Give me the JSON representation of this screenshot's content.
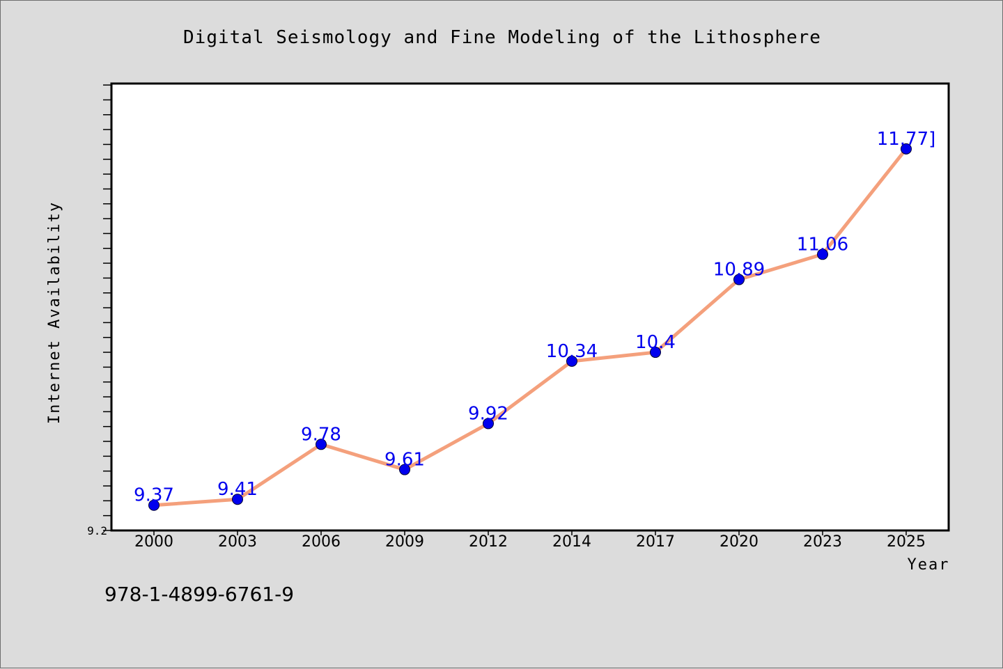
{
  "chart_data": {
    "type": "line",
    "title": "Digital Seismology and Fine Modeling of the Lithosphere",
    "xlabel": "Year",
    "ylabel": "Internet Availability",
    "categories": [
      "2000",
      "2003",
      "2006",
      "2009",
      "2012",
      "2014",
      "2017",
      "2020",
      "2023",
      "2025"
    ],
    "series": [
      {
        "values": [
          9.37,
          9.41,
          9.78,
          9.61,
          9.92,
          10.34,
          10.4,
          10.89,
          11.06,
          11.77
        ]
      }
    ],
    "data_labels": [
      "9.37",
      "9.41",
      "9.78",
      "9.61",
      "9.92",
      "10.34",
      "10.4",
      "10.89",
      "11.06",
      "11.77]"
    ],
    "ylim": [
      9.2,
      12.21
    ],
    "y_tick_labels": [
      {
        "value": 9.2,
        "label": "9.2"
      }
    ],
    "minor_tick_step": 0.1,
    "grid": false,
    "legend": "none",
    "annotation": "978-1-4899-6761-9"
  },
  "colors": {
    "background": "#dcdcdc",
    "plot_background": "#ffffff",
    "line": "#f4a07c",
    "marker": "#0000ee",
    "data_label": "#0000ee",
    "axis": "#000000"
  }
}
